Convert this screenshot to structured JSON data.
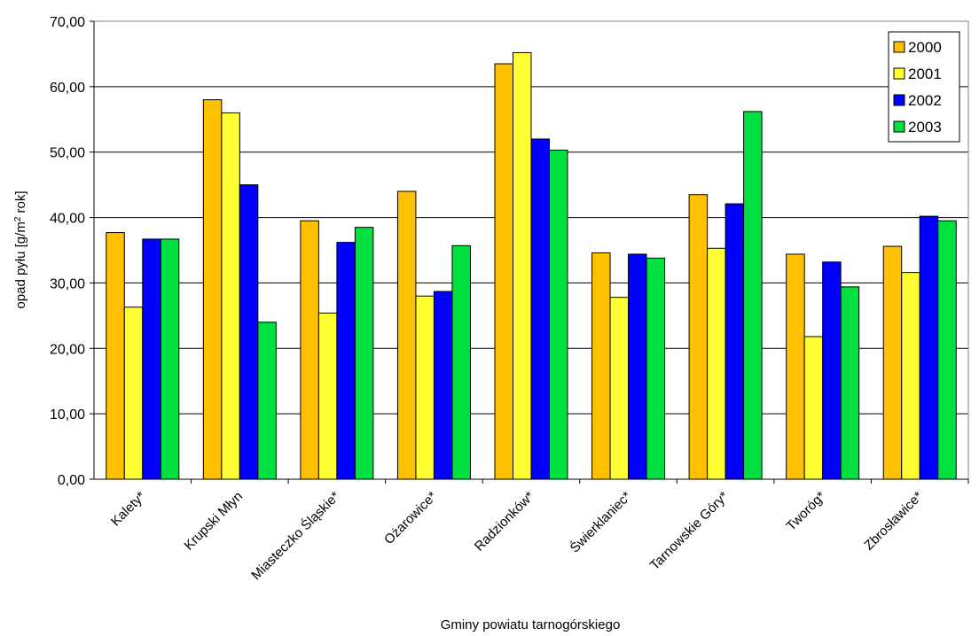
{
  "chart_data": {
    "type": "bar",
    "title": "",
    "xlabel": "Gminy powiatu tarnogórskiego",
    "ylabel": "opad pyłu [g/m",
    "ylabel_sup": "2",
    "ylabel_tail": " rok]",
    "ylim": [
      0,
      70
    ],
    "ytick_step": 10,
    "ytick_labels": [
      "0,00",
      "10,00",
      "20,00",
      "30,00",
      "40,00",
      "50,00",
      "60,00",
      "70,00"
    ],
    "grid": true,
    "legend_position": "top-right",
    "categories": [
      "Kalety*",
      "Krupski Młyn",
      "Miasteczko Śląskie*",
      "Ożarowice*",
      "Radzionków*",
      "Świerklaniec*",
      "Tarnowskie Góry*",
      "Tworóg*",
      "Zbrosławice*"
    ],
    "series": [
      {
        "name": "2000",
        "color": "#FFC000",
        "values": [
          37.7,
          58.0,
          39.5,
          44.0,
          63.5,
          34.6,
          43.5,
          34.4,
          35.6
        ]
      },
      {
        "name": "2001",
        "color": "#FFFF33",
        "values": [
          26.3,
          56.0,
          25.4,
          28.0,
          65.2,
          27.8,
          35.3,
          21.8,
          31.6
        ]
      },
      {
        "name": "2002",
        "color": "#0000FF",
        "values": [
          36.7,
          45.0,
          36.2,
          28.7,
          52.0,
          34.4,
          42.1,
          33.2,
          40.2
        ]
      },
      {
        "name": "2003",
        "color": "#00E040",
        "values": [
          36.7,
          24.0,
          38.5,
          35.7,
          50.3,
          33.8,
          56.2,
          29.4,
          39.5
        ]
      }
    ]
  }
}
